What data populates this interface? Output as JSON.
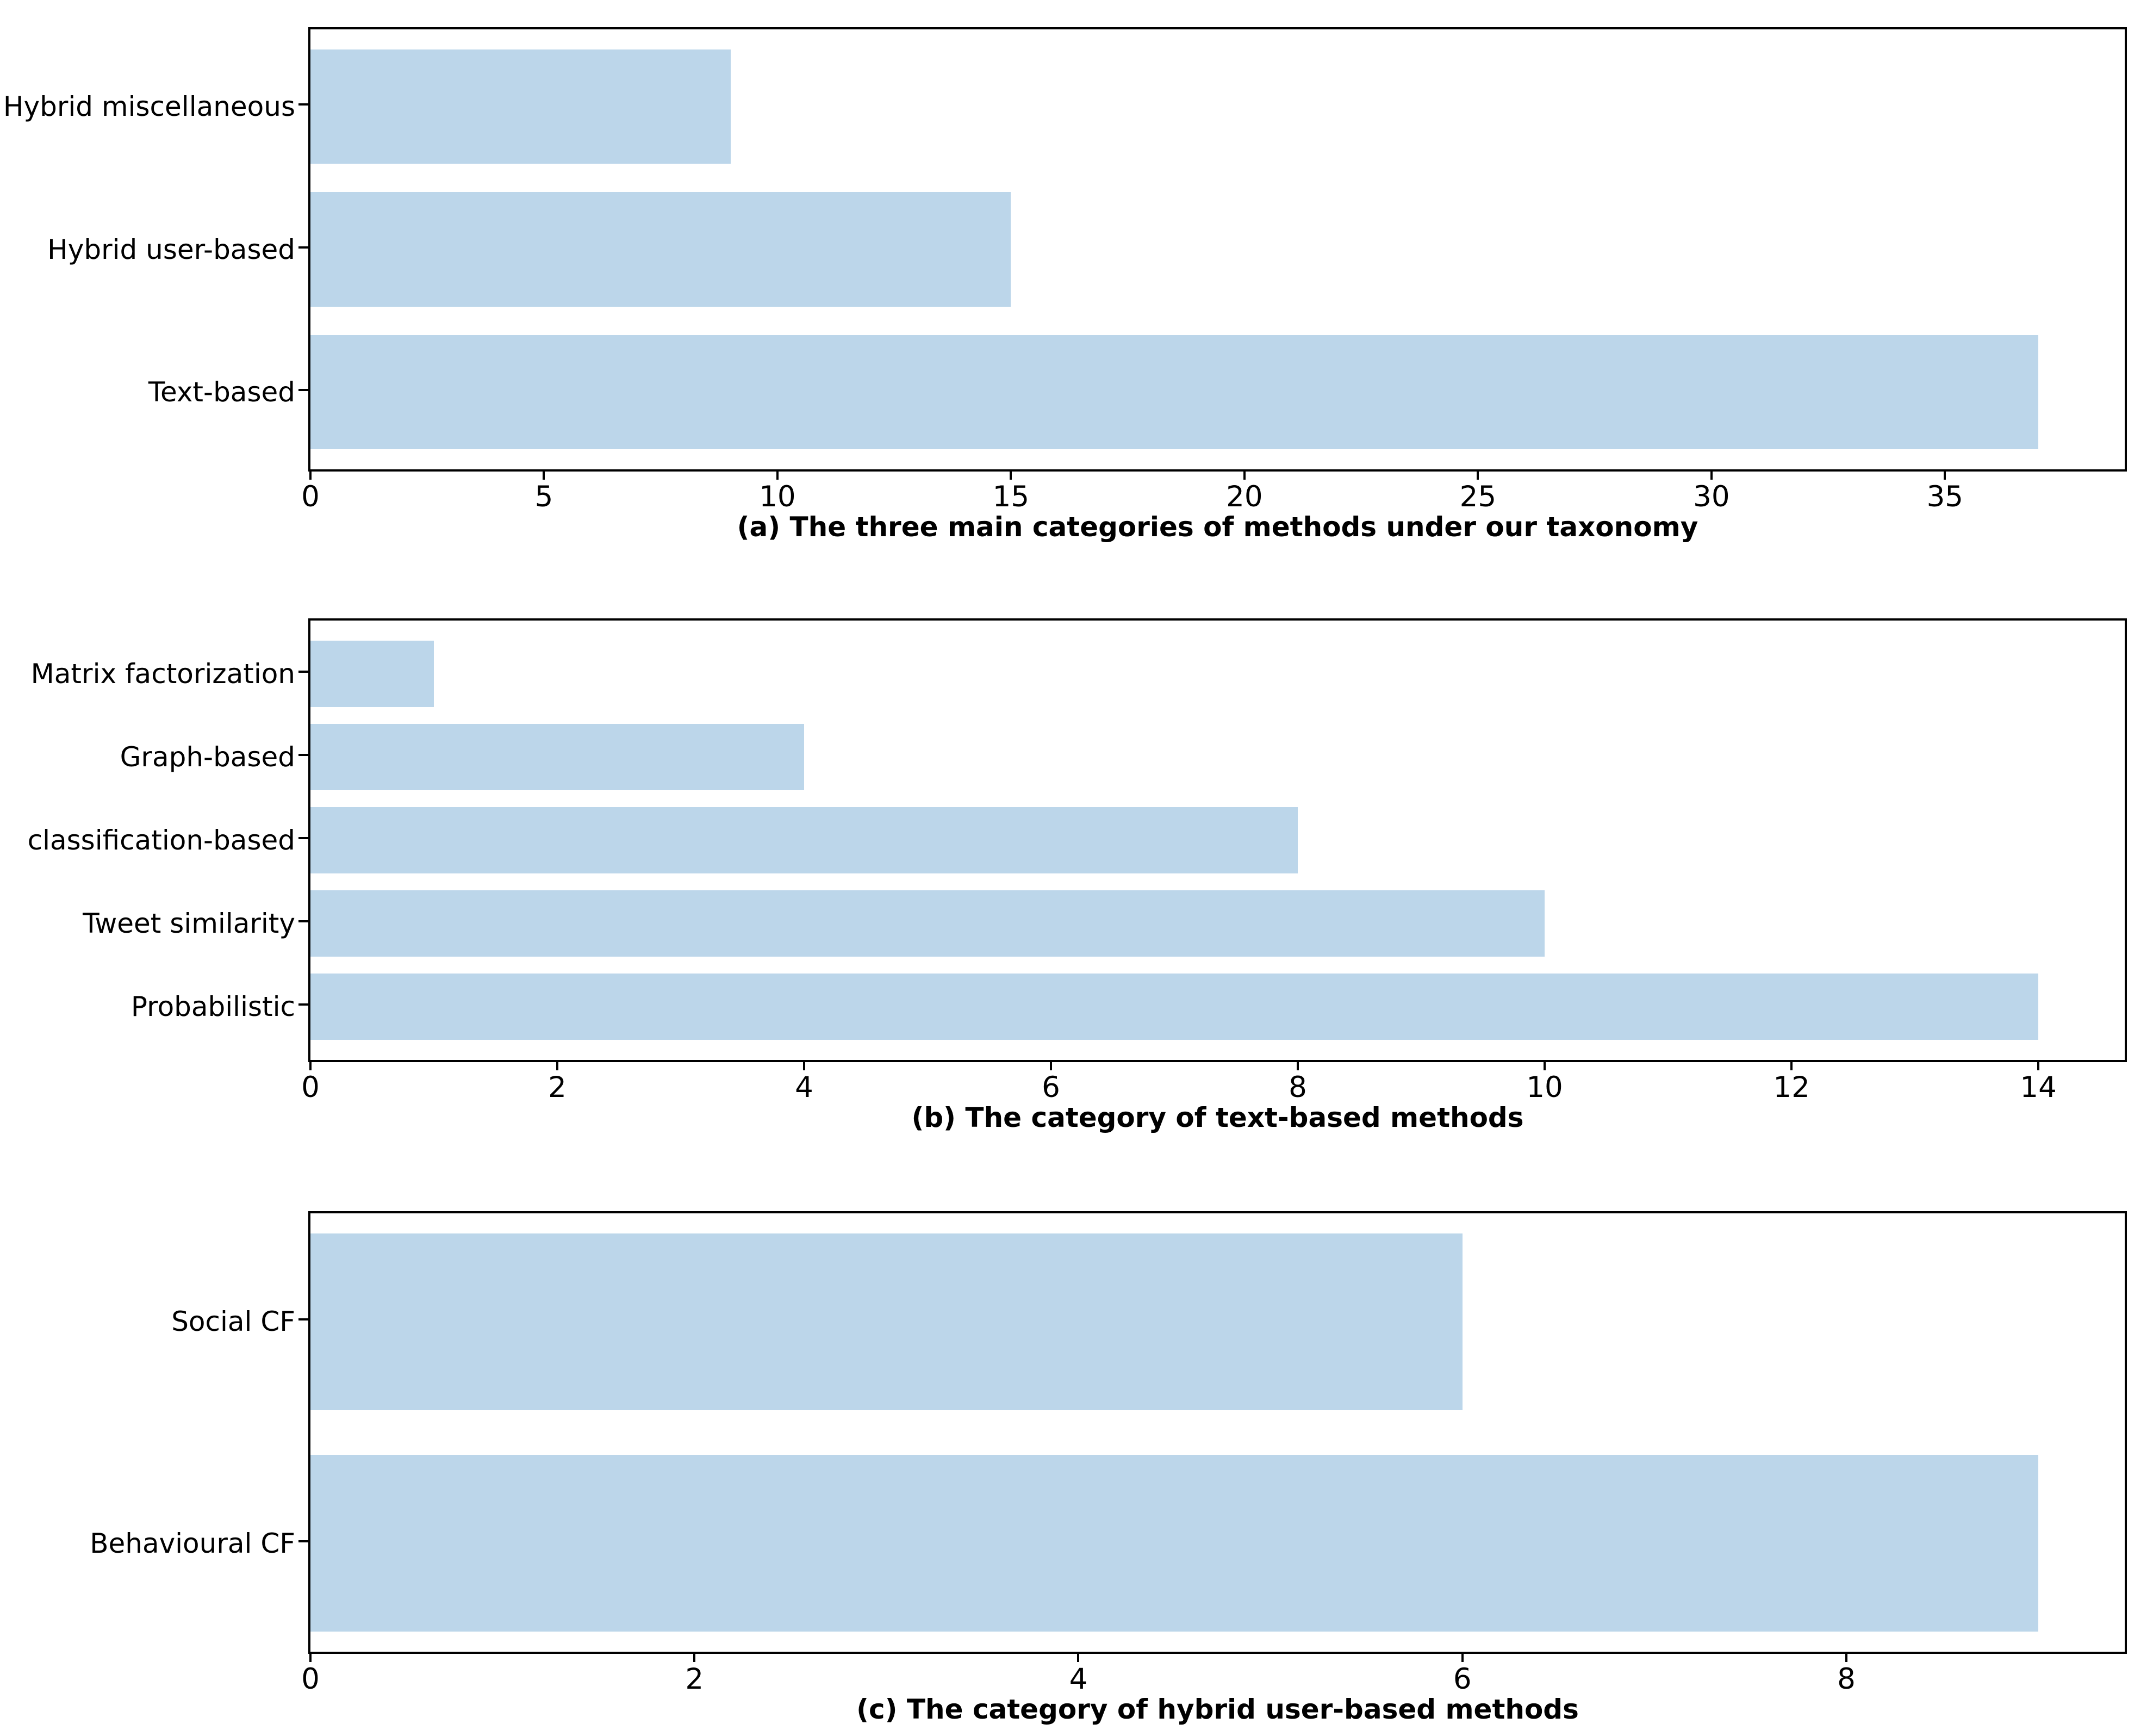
{
  "styles": {
    "bar_color": "#bcd6ea",
    "spine_color": "#000000",
    "text_color": "#000000",
    "background": "#ffffff"
  },
  "chart_data": [
    {
      "id": "a",
      "type": "bar",
      "orientation": "horizontal",
      "title": "",
      "caption": "(a) The three main categories of methods under our taxonomy",
      "categories_top_to_bottom": [
        "Hybrid miscellaneous",
        "Hybrid user-based",
        "Text-based"
      ],
      "values": [
        9,
        15,
        37
      ],
      "x_ticks": [
        0,
        5,
        10,
        15,
        20,
        25,
        30,
        35
      ],
      "xlim": [
        0,
        38.85
      ],
      "xlabel": "",
      "ylabel": "",
      "grid": false,
      "legend": null
    },
    {
      "id": "b",
      "type": "bar",
      "orientation": "horizontal",
      "title": "",
      "caption": "(b) The category of text-based methods",
      "categories_top_to_bottom": [
        "Matrix factorization",
        "Graph-based",
        "classification-based",
        "Tweet similarity",
        "Probabilistic"
      ],
      "values": [
        1,
        4,
        8,
        10,
        14
      ],
      "x_ticks": [
        0,
        2,
        4,
        6,
        8,
        10,
        12,
        14
      ],
      "xlim": [
        0,
        14.7
      ],
      "xlabel": "",
      "ylabel": "",
      "grid": false,
      "legend": null
    },
    {
      "id": "c",
      "type": "bar",
      "orientation": "horizontal",
      "title": "",
      "caption": "(c) The category of hybrid user-based methods",
      "categories_top_to_bottom": [
        "Social CF",
        "Behavioural CF"
      ],
      "values": [
        6,
        9
      ],
      "x_ticks": [
        0,
        2,
        4,
        6,
        8
      ],
      "xlim": [
        0,
        9.45
      ],
      "xlabel": "",
      "ylabel": "",
      "grid": false,
      "legend": null
    }
  ]
}
